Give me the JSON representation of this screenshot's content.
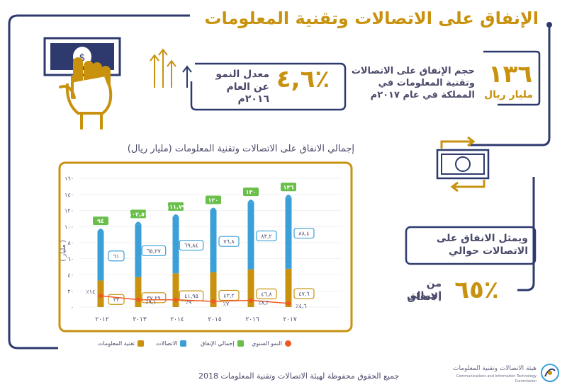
{
  "header": {
    "title": "الإنفاق على الاتصالات وتقنية المعلومات"
  },
  "stats": {
    "total": {
      "value": "١٣٦",
      "unit": "مليار ريال",
      "text": [
        "حجم الإنفاق على الاتصالات",
        "وتقنية المعلومات في",
        "المملكة في عام ٢٠١٧م"
      ]
    },
    "growth": {
      "value": "٤,٦٪",
      "text": [
        "معدل النمو",
        "عن العام ٢٠١٦م"
      ]
    },
    "share": {
      "text": [
        "ويمثل الانفاق على",
        "الاتصالات حوالي"
      ],
      "value": "٦٥٪",
      "text2": [
        "من إجمالي",
        "الانفاق"
      ]
    }
  },
  "colors": {
    "gold": "#c8920f",
    "blue": "#3b9fd8",
    "green": "#6abf4b",
    "orange": "#ef5a24",
    "navy": "#2e3a6e",
    "text": "#4a4a6a"
  },
  "icons": [
    "money-hand-icon",
    "growth-arrows-icon",
    "money-exchange-icon",
    "commission-logo-icon"
  ],
  "footer": {
    "copyright": "جميع الحقوق محفوظة لهيئة الاتصالات وتقنية المعلومات 2018"
  },
  "logo": {
    "arabic": "هيئة الاتصالات وتقنية المعلومات",
    "english": "Communications and Information Technology Commission"
  },
  "chart_data": {
    "type": "bar",
    "title": "إجمالي الانفاق على الاتصالات وتقنية المعلومات (مليار ريال)",
    "ylabel": "مليار",
    "ylim": [
      0,
      160
    ],
    "yticks": [
      "٠",
      "٢٠",
      "٤٠",
      "٦٠",
      "٨٠",
      "١٠٠",
      "١٢٠",
      "١٤٠",
      "١٦٠"
    ],
    "categories": [
      "٢٠١٢",
      "٢٠١٣",
      "٢٠١٤",
      "٢٠١٥",
      "٢٠١٦",
      "٢٠١٧"
    ],
    "series": [
      {
        "name": "تقنية المعلومات",
        "values": [
          33,
          37.29,
          41.95,
          43.2,
          46.8,
          47.6
        ],
        "labels": [
          "٣٣",
          "٣٧,٢٩",
          "٤١,٩٥",
          "٤٣,٢",
          "٤٦,٨",
          "٤٧,٦"
        ]
      },
      {
        "name": "الاتصالات",
        "values": [
          61,
          65.27,
          69.84,
          76.8,
          83.2,
          88.4
        ],
        "labels": [
          "٦١",
          "٦٥,٢٧",
          "٦٩,٨٤",
          "٧٦,٨",
          "٨٣,٢",
          "٨٨,٤"
        ]
      },
      {
        "name": "إجمالي الإنفاق",
        "values": [
          94,
          102.51,
          111.79,
          120,
          130,
          136
        ],
        "labels": [
          "٩٤",
          "١٠٢,٥١",
          "١١١,٧٩",
          "١٢٠",
          "١٣٠",
          "١٣٦"
        ]
      },
      {
        "name": "النمو السنوي",
        "values": [
          14,
          9.1,
          9,
          7,
          8.3,
          4.6
        ],
        "labels": [
          "٪١٤",
          "٪٩,١",
          "٪٩",
          "٪٧",
          "٪٨,٣",
          "٪٤,٦"
        ]
      }
    ],
    "legend_position": "bottom",
    "grid": true
  }
}
